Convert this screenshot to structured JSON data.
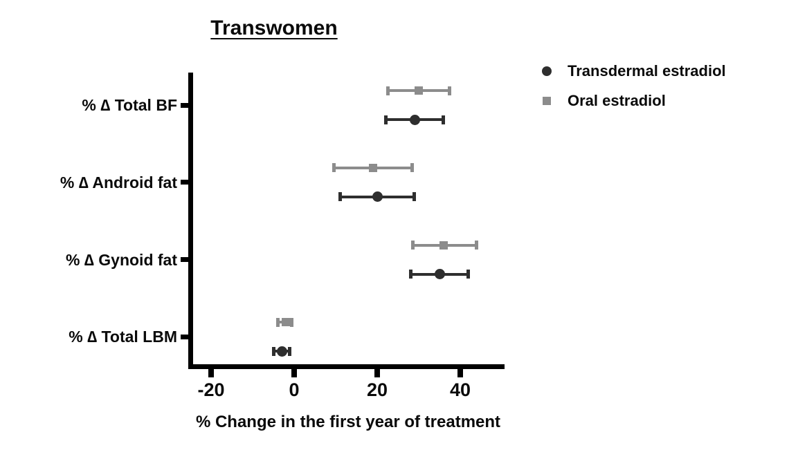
{
  "chart_data": {
    "type": "scatter",
    "subtype": "horizontal-point-estimates-with-error-bars",
    "title": "Transwomen",
    "xlabel": "% Change in the first year of treatment",
    "categories": [
      "% ∆ Total BF",
      "% ∆ Android fat",
      "% ∆ Gynoid fat",
      "% ∆ Total LBM"
    ],
    "xlim": [
      -25,
      50
    ],
    "xticks": [
      -20,
      0,
      20,
      40
    ],
    "grid": false,
    "legend_position": "top-right",
    "axis_color": "#000000",
    "series": [
      {
        "name": "Transdermal estradiol",
        "marker": "circle",
        "color": "#2e2e2e",
        "values": [
          29,
          20,
          35,
          -3
        ],
        "ci_low": [
          22,
          11,
          28,
          -5
        ],
        "ci_high": [
          36,
          29,
          42,
          -1
        ]
      },
      {
        "name": "Oral estradiol",
        "marker": "square",
        "color": "#8c8c8c",
        "values": [
          30,
          19,
          36,
          -2
        ],
        "ci_low": [
          22.5,
          9.5,
          28.5,
          -4
        ],
        "ci_high": [
          37.5,
          28.5,
          44,
          -0.5
        ]
      }
    ]
  }
}
